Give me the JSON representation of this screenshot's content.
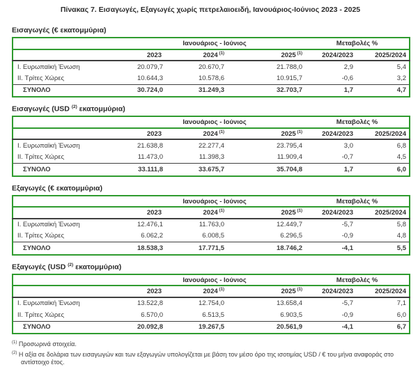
{
  "title": "Πίνακας 7. Εισαγωγές, Εξαγωγές χωρίς πετρελαιοειδή, Ιανουάριος-Ιούνιος 2023 - 2025",
  "colors": {
    "table_border_green": "#2f9b2f",
    "header_rule_dark": "#3f3f3f",
    "text": "#3a3a3a"
  },
  "columns": {
    "period": "Ιανουάριος - Ιούνιος",
    "changes": "Μεταβολές %",
    "years": [
      {
        "label": "2023",
        "sup": ""
      },
      {
        "label": "2024",
        "sup": "(1)"
      },
      {
        "label": "2025",
        "sup": "(1)"
      }
    ],
    "changes_cols": [
      "2024/2023",
      "2025/2024"
    ]
  },
  "tables": [
    {
      "title_pre": "Εισαγωγές (€ εκατομμύρια)",
      "title_sup": "",
      "title_post": "",
      "rows": [
        {
          "label": "I. Ευρωπαϊκή Ένωση",
          "values": [
            "20.079,7",
            "20.670,7",
            "21.788,0",
            "2,9",
            "5,4"
          ]
        },
        {
          "label": "II. Τρίτες Χώρες",
          "values": [
            "10.644,3",
            "10.578,6",
            "10.915,7",
            "-0,6",
            "3,2"
          ]
        }
      ],
      "total": {
        "label": "ΣΥΝΟΛΟ",
        "values": [
          "30.724,0",
          "31.249,3",
          "32.703,7",
          "1,7",
          "4,7"
        ]
      }
    },
    {
      "title_pre": "Εισαγωγές (USD ",
      "title_sup": "(2)",
      "title_post": " εκατομμύρια)",
      "rows": [
        {
          "label": "I. Ευρωπαϊκή Ένωση",
          "values": [
            "21.638,8",
            "22.277,4",
            "23.795,4",
            "3,0",
            "6,8"
          ]
        },
        {
          "label": "II. Τρίτες Χώρες",
          "values": [
            "11.473,0",
            "11.398,3",
            "11.909,4",
            "-0,7",
            "4,5"
          ]
        }
      ],
      "total": {
        "label": "ΣΥΝΟΛΟ",
        "values": [
          "33.111,8",
          "33.675,7",
          "35.704,8",
          "1,7",
          "6,0"
        ]
      }
    },
    {
      "title_pre": "Εξαγωγές (€ εκατομμύρια)",
      "title_sup": "",
      "title_post": "",
      "rows": [
        {
          "label": "I. Ευρωπαϊκή Ένωση",
          "values": [
            "12.476,1",
            "11.763,0",
            "12.449,7",
            "-5,7",
            "5,8"
          ]
        },
        {
          "label": "II. Τρίτες Χώρες",
          "values": [
            "6.062,2",
            "6.008,5",
            "6.296,5",
            "-0,9",
            "4,8"
          ]
        }
      ],
      "total": {
        "label": "ΣΥΝΟΛΟ",
        "values": [
          "18.538,3",
          "17.771,5",
          "18.746,2",
          "-4,1",
          "5,5"
        ]
      }
    },
    {
      "title_pre": "Εξαγωγές (USD ",
      "title_sup": "(2)",
      "title_post": " εκατομμύρια)",
      "rows": [
        {
          "label": "I. Ευρωπαϊκή Ένωση",
          "values": [
            "13.522,8",
            "12.754,0",
            "13.658,4",
            "-5,7",
            "7,1"
          ]
        },
        {
          "label": "II. Τρίτες Χώρες",
          "values": [
            "6.570,0",
            "6.513,5",
            "6.903,5",
            "-0,9",
            "6,0"
          ]
        }
      ],
      "total": {
        "label": "ΣΥΝΟΛΟ",
        "values": [
          "20.092,8",
          "19.267,5",
          "20.561,9",
          "-4,1",
          "6,7"
        ]
      }
    }
  ],
  "footnotes": [
    {
      "sup": "(1)",
      "text": "Προσωρινά στοιχεία."
    },
    {
      "sup": "(2)",
      "text": "Η αξία σε δολάρια των εισαγωγών και των εξαγωγών υπολογίζεται με βάση τον μέσο όρο της ισοτιμίας USD / € του μήνα αναφοράς στο αντίστοιχο έτος."
    }
  ]
}
